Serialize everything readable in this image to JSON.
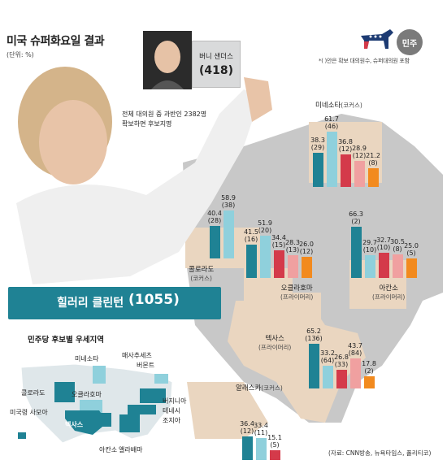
{
  "header": {
    "title": "미국 슈퍼화요일 결과",
    "unit": "(단위: %)",
    "party": "민주",
    "note": "*( )안은 확보 대의원수, 슈퍼대의원 포함",
    "source": "(자료: CNN방송, 뉴욕타임스, 폴리티코)"
  },
  "candidates": {
    "sanders": {
      "name": "버니 샌더스",
      "delegates": "(418)"
    },
    "clinton": {
      "name": "힐러리 클린턴",
      "delegates": "(1055)"
    },
    "majority_note_line1": "전체 대의원 중 과반인 2382명",
    "majority_note_line2": "확보하면 후보지명"
  },
  "colors": {
    "clinton": "#1f8294",
    "sanders": "#8fd0dc",
    "clinton_other": "#d43a4a",
    "sanders_other": "#f0a0a0",
    "orange": "#f28a1e"
  },
  "chart_data": [
    {
      "type": "bar",
      "state": "미네소타",
      "contest": "(코커스)",
      "labels": [
        "38.3",
        "61.7",
        "36.8",
        "28.9",
        "21.2"
      ],
      "values": [
        38.3,
        61.7,
        36.8,
        28.9,
        21.2
      ],
      "delegates": [
        "(29)",
        "(46)",
        "(12)",
        "(12)",
        "(8)"
      ]
    },
    {
      "type": "bar",
      "state": "콜로라도",
      "contest": "(코커스)",
      "labels": [
        "40.4",
        "58.9"
      ],
      "values": [
        40.4,
        58.9
      ],
      "delegates": [
        "(28)",
        "(38)"
      ]
    },
    {
      "type": "bar",
      "state": "오클라호마",
      "contest": "(프라이머리)",
      "labels": [
        "41.5",
        "51.9",
        "34.4",
        "28.3",
        "26.0"
      ],
      "values": [
        41.5,
        51.9,
        34.4,
        28.3,
        26.0
      ],
      "delegates": [
        "(16)",
        "(20)",
        "(15)",
        "(13)",
        "(12)"
      ]
    },
    {
      "type": "bar",
      "state": "아칸소",
      "contest": "(프라이머리)",
      "labels": [
        "66.3",
        "29.7",
        "32.7",
        "30.5",
        "25.0"
      ],
      "values": [
        66.3,
        29.7,
        32.7,
        30.5,
        25.0
      ],
      "delegates": [
        "(2)",
        "(10)",
        "(10)",
        "(8)",
        "(5)"
      ]
    },
    {
      "type": "bar",
      "state": "텍사스",
      "contest": "(프라이머리)",
      "labels": [
        "65.2",
        "33.2",
        "26.8",
        "43.7",
        "17.8"
      ],
      "values": [
        65.2,
        33.2,
        26.8,
        43.7,
        17.8
      ],
      "delegates": [
        "(136)",
        "(64)",
        "(33)",
        "(84)",
        "(2)"
      ]
    },
    {
      "type": "bar",
      "state": "알래스카",
      "contest": "(코커스)",
      "labels": [
        "36.4",
        "33.4",
        "15.1"
      ],
      "values": [
        36.4,
        33.4,
        15.1
      ],
      "delegates": [
        "(12)",
        "(11)",
        "(5)"
      ]
    }
  ],
  "minimap": {
    "title": "민주당 후보별 우세지역",
    "labels": [
      "미네소타",
      "매사추세츠",
      "버몬트",
      "콜로라도",
      "오클라호마",
      "버지니아",
      "테네시",
      "조지아",
      "미국령 사모아",
      "텍사스",
      "아칸소",
      "앨라배마"
    ]
  }
}
